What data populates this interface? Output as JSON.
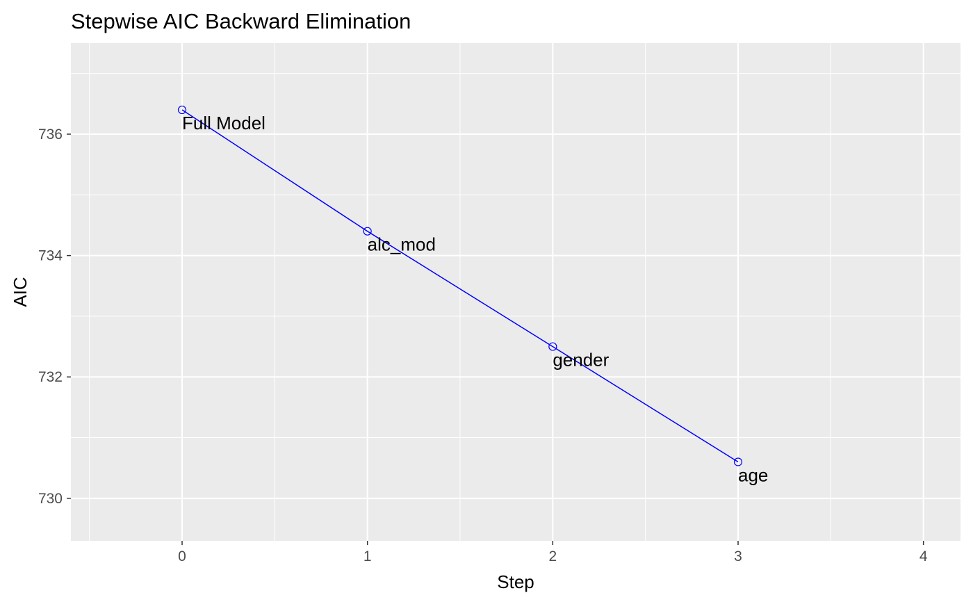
{
  "chart_data": {
    "type": "line",
    "title": "Stepwise AIC Backward Elimination",
    "xlabel": "Step",
    "ylabel": "AIC",
    "xlim": [
      -0.6,
      4.2
    ],
    "ylim": [
      729.3,
      737.5
    ],
    "x_ticks": [
      0,
      1,
      2,
      3,
      4
    ],
    "y_ticks": [
      730,
      732,
      734,
      736
    ],
    "x_tick_labels": [
      "0",
      "1",
      "2",
      "3",
      "4"
    ],
    "y_tick_labels": [
      "730",
      "732",
      "734",
      "736"
    ],
    "grid": true,
    "series": [
      {
        "x": [
          0,
          1,
          2,
          3
        ],
        "y": [
          736.4,
          734.4,
          732.5,
          730.6
        ],
        "labels": [
          "Full Model",
          "alc_mod",
          "gender",
          "age"
        ],
        "color": "#0000ff"
      }
    ],
    "colors": {
      "panel_background": "#ebebeb",
      "grid": "#ffffff",
      "line": "#0000ff"
    }
  }
}
